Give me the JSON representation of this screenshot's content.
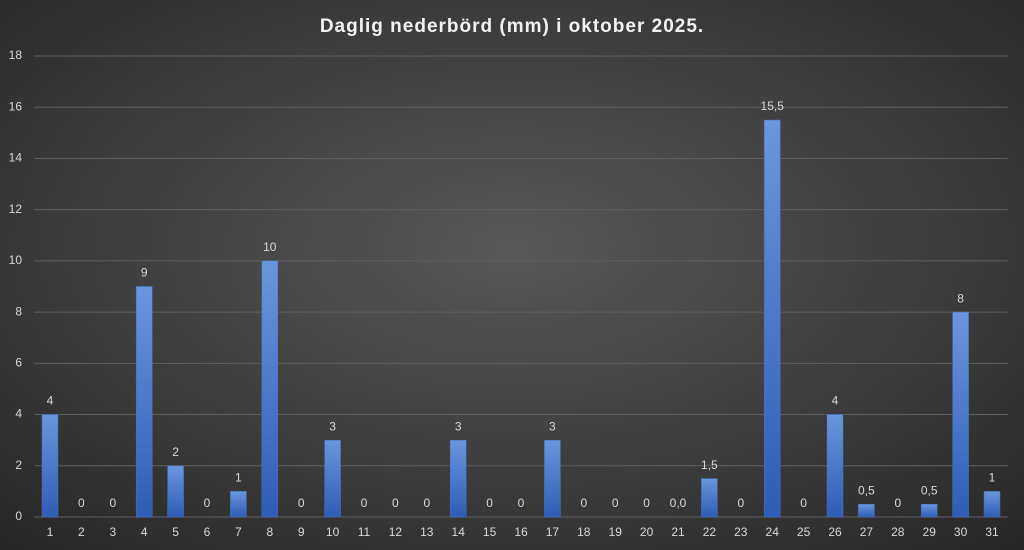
{
  "chart_data": {
    "type": "bar",
    "title": "Daglig nederbörd (mm) i oktober 2025.",
    "categories": [
      "1",
      "2",
      "3",
      "4",
      "5",
      "6",
      "7",
      "8",
      "9",
      "10",
      "11",
      "12",
      "13",
      "14",
      "15",
      "16",
      "17",
      "18",
      "19",
      "20",
      "21",
      "22",
      "23",
      "24",
      "25",
      "26",
      "27",
      "28",
      "29",
      "30",
      "31"
    ],
    "values": [
      4,
      0,
      0,
      9,
      2,
      0,
      1,
      10,
      0,
      3,
      0,
      0,
      0,
      3,
      0,
      0,
      3,
      0,
      0,
      0,
      0,
      1.5,
      0,
      15.5,
      0,
      4,
      0.5,
      0,
      0.5,
      8,
      1
    ],
    "value_labels": [
      "4",
      "0",
      "0",
      "9",
      "2",
      "0",
      "1",
      "10",
      "0",
      "3",
      "0",
      "0",
      "0",
      "3",
      "0",
      "0",
      "3",
      "0",
      "0",
      "0",
      "0,0",
      "1,5",
      "0",
      "15,5",
      "0",
      "4",
      "0,5",
      "0",
      "0,5",
      "8",
      "1"
    ],
    "color": "#4472c4",
    "ylim": [
      0,
      18
    ],
    "yticks": [
      0,
      2,
      4,
      6,
      8,
      10,
      12,
      14,
      16,
      18
    ],
    "grid": true
  }
}
